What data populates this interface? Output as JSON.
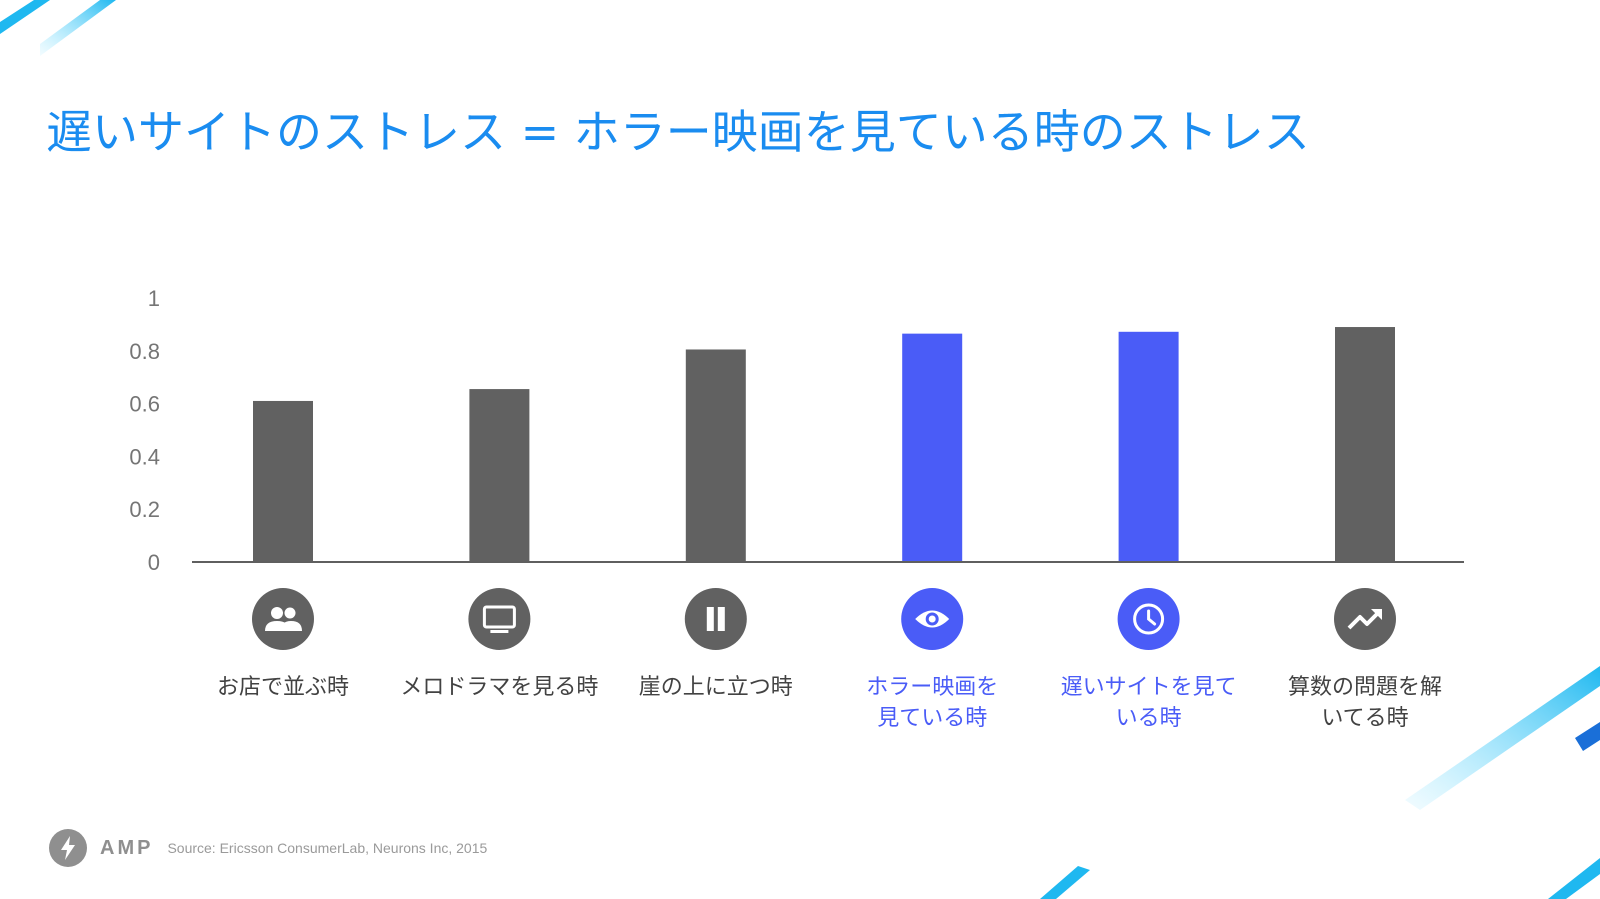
{
  "slide": {
    "title": "遅いサイトのストレス = ホラー映画を見ている時のストレス"
  },
  "footer": {
    "brand": "AMP",
    "source": "Source:  Ericsson ConsumerLab, Neurons Inc, 2015"
  },
  "colors": {
    "title": "#1a8cf0",
    "default_bar": "#616161",
    "highlight_bar": "#4a5cf7",
    "axis_text": "#757575",
    "label_text": "#424242"
  },
  "chart_data": {
    "type": "bar",
    "title": "",
    "xlabel": "",
    "ylabel": "",
    "ylim": [
      0,
      1
    ],
    "yticks": [
      "0",
      "0.2",
      "0.4",
      "0.6",
      "0.8",
      "1"
    ],
    "yticks_values": [
      0,
      0.2,
      0.4,
      0.6,
      0.8,
      1
    ],
    "grid": false,
    "categories": [
      {
        "label_lines": [
          "お店で並ぶ時"
        ],
        "icon": "people-icon",
        "highlight": false
      },
      {
        "label_lines": [
          "メロドラマを見る時"
        ],
        "icon": "tv-icon",
        "highlight": false
      },
      {
        "label_lines": [
          "崖の上に立つ時"
        ],
        "icon": "pause-icon",
        "highlight": false
      },
      {
        "label_lines": [
          "ホラー映画を",
          "見ている時"
        ],
        "icon": "eye-icon",
        "highlight": true
      },
      {
        "label_lines": [
          "遅いサイトを見て",
          "いる時"
        ],
        "icon": "clock-icon",
        "highlight": true
      },
      {
        "label_lines": [
          "算数の問題を解",
          "いてる時"
        ],
        "icon": "trending-up-icon",
        "highlight": false
      }
    ],
    "values": [
      0.61,
      0.655,
      0.805,
      0.865,
      0.872,
      0.89
    ]
  }
}
